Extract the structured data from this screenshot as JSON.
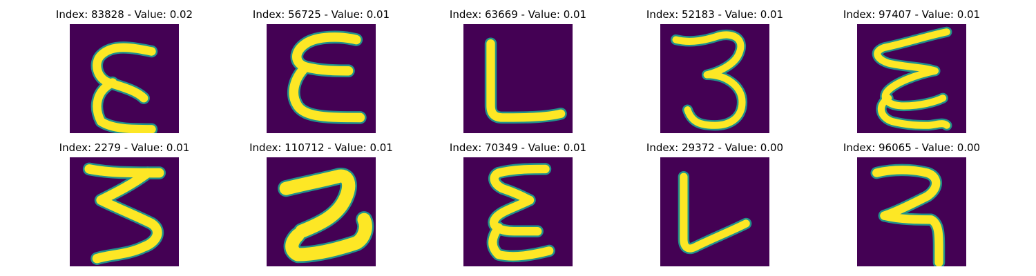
{
  "figure": {
    "background_color": "#440154",
    "stroke_color": "#fde725",
    "edge_color": "#21918c",
    "cells": [
      {
        "title": "Index: 83828 - Value: 0.02",
        "glyph": "E-rounded"
      },
      {
        "title": "Index: 56725 - Value: 0.01",
        "glyph": "E-bold"
      },
      {
        "title": "Index: 63669 - Value: 0.01",
        "glyph": "L"
      },
      {
        "title": "Index: 52183 - Value: 0.01",
        "glyph": "3"
      },
      {
        "title": "Index: 97407 - Value: 0.01",
        "glyph": "E-zigzag"
      },
      {
        "title": "Index: 2279 - Value: 0.01",
        "glyph": "3-wide"
      },
      {
        "title": "Index: 110712 - Value: 0.01",
        "glyph": "2-thick"
      },
      {
        "title": "Index: 70349 - Value: 0.01",
        "glyph": "E-narrow"
      },
      {
        "title": "Index: 29372 - Value: 0.00",
        "glyph": "L-angled"
      },
      {
        "title": "Index: 96065 - Value: 0.00",
        "glyph": "reverse-7"
      }
    ]
  }
}
